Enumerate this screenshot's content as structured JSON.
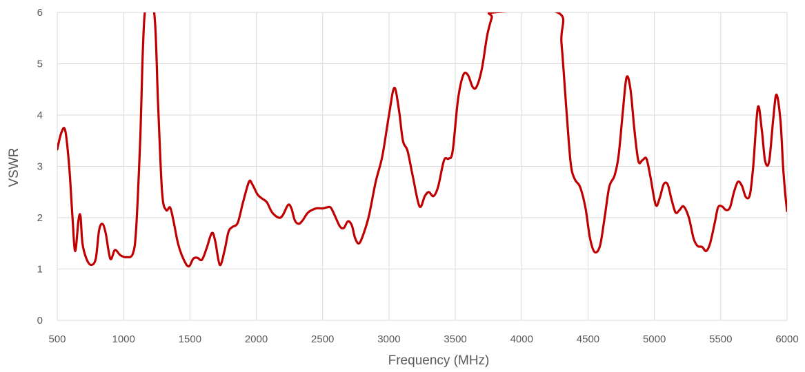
{
  "chart_data": {
    "type": "line",
    "title": "",
    "xlabel": "Frequency (MHz)",
    "ylabel": "VSWR",
    "xlim": [
      500,
      6000
    ],
    "ylim": [
      0,
      6
    ],
    "x_ticks": [
      500,
      1000,
      1500,
      2000,
      2500,
      3000,
      3500,
      4000,
      4500,
      5000,
      5500,
      6000
    ],
    "y_ticks": [
      0,
      1,
      2,
      3,
      4,
      5,
      6
    ],
    "grid": "on",
    "legend": "none",
    "series": [
      {
        "color": "#c00000",
        "points": [
          [
            500,
            3.33
          ],
          [
            530,
            3.65
          ],
          [
            560,
            3.7
          ],
          [
            590,
            3.0
          ],
          [
            615,
            2.0
          ],
          [
            635,
            1.35
          ],
          [
            660,
            1.95
          ],
          [
            675,
            2.03
          ],
          [
            690,
            1.5
          ],
          [
            720,
            1.2
          ],
          [
            755,
            1.08
          ],
          [
            790,
            1.2
          ],
          [
            815,
            1.75
          ],
          [
            840,
            1.88
          ],
          [
            865,
            1.7
          ],
          [
            900,
            1.2
          ],
          [
            935,
            1.37
          ],
          [
            975,
            1.27
          ],
          [
            1020,
            1.23
          ],
          [
            1070,
            1.3
          ],
          [
            1095,
            1.8
          ],
          [
            1125,
            3.5
          ],
          [
            1160,
            6.0
          ],
          [
            1230,
            6.0
          ],
          [
            1260,
            4.2
          ],
          [
            1290,
            2.5
          ],
          [
            1320,
            2.15
          ],
          [
            1350,
            2.2
          ],
          [
            1375,
            1.95
          ],
          [
            1410,
            1.5
          ],
          [
            1450,
            1.2
          ],
          [
            1490,
            1.05
          ],
          [
            1525,
            1.2
          ],
          [
            1555,
            1.22
          ],
          [
            1590,
            1.18
          ],
          [
            1625,
            1.4
          ],
          [
            1665,
            1.7
          ],
          [
            1690,
            1.55
          ],
          [
            1725,
            1.08
          ],
          [
            1760,
            1.35
          ],
          [
            1790,
            1.72
          ],
          [
            1820,
            1.82
          ],
          [
            1860,
            1.9
          ],
          [
            1900,
            2.3
          ],
          [
            1945,
            2.7
          ],
          [
            1970,
            2.65
          ],
          [
            2010,
            2.45
          ],
          [
            2045,
            2.37
          ],
          [
            2080,
            2.3
          ],
          [
            2120,
            2.1
          ],
          [
            2170,
            2.0
          ],
          [
            2200,
            2.05
          ],
          [
            2240,
            2.25
          ],
          [
            2265,
            2.18
          ],
          [
            2290,
            1.95
          ],
          [
            2320,
            1.88
          ],
          [
            2350,
            1.95
          ],
          [
            2390,
            2.1
          ],
          [
            2450,
            2.18
          ],
          [
            2500,
            2.18
          ],
          [
            2530,
            2.2
          ],
          [
            2560,
            2.2
          ],
          [
            2590,
            2.05
          ],
          [
            2630,
            1.83
          ],
          [
            2660,
            1.8
          ],
          [
            2690,
            1.93
          ],
          [
            2720,
            1.85
          ],
          [
            2745,
            1.6
          ],
          [
            2775,
            1.5
          ],
          [
            2810,
            1.7
          ],
          [
            2850,
            2.05
          ],
          [
            2900,
            2.7
          ],
          [
            2950,
            3.2
          ],
          [
            3000,
            4.0
          ],
          [
            3040,
            4.53
          ],
          [
            3075,
            4.1
          ],
          [
            3105,
            3.5
          ],
          [
            3140,
            3.3
          ],
          [
            3180,
            2.8
          ],
          [
            3230,
            2.22
          ],
          [
            3270,
            2.42
          ],
          [
            3300,
            2.5
          ],
          [
            3335,
            2.42
          ],
          [
            3370,
            2.6
          ],
          [
            3415,
            3.12
          ],
          [
            3450,
            3.15
          ],
          [
            3480,
            3.3
          ],
          [
            3520,
            4.3
          ],
          [
            3560,
            4.78
          ],
          [
            3595,
            4.78
          ],
          [
            3630,
            4.55
          ],
          [
            3660,
            4.55
          ],
          [
            3700,
            4.9
          ],
          [
            3740,
            5.55
          ],
          [
            3775,
            5.9
          ],
          [
            3790,
            6.0
          ],
          [
            4270,
            6.0
          ],
          [
            4300,
            5.4
          ],
          [
            4340,
            4.0
          ],
          [
            4370,
            3.05
          ],
          [
            4400,
            2.75
          ],
          [
            4440,
            2.6
          ],
          [
            4480,
            2.2
          ],
          [
            4515,
            1.6
          ],
          [
            4550,
            1.33
          ],
          [
            4590,
            1.45
          ],
          [
            4625,
            2.0
          ],
          [
            4660,
            2.6
          ],
          [
            4700,
            2.82
          ],
          [
            4730,
            3.2
          ],
          [
            4760,
            4.0
          ],
          [
            4790,
            4.73
          ],
          [
            4820,
            4.5
          ],
          [
            4850,
            3.7
          ],
          [
            4880,
            3.1
          ],
          [
            4910,
            3.12
          ],
          [
            4940,
            3.15
          ],
          [
            4970,
            2.8
          ],
          [
            5010,
            2.25
          ],
          [
            5040,
            2.38
          ],
          [
            5070,
            2.65
          ],
          [
            5100,
            2.65
          ],
          [
            5130,
            2.35
          ],
          [
            5160,
            2.1
          ],
          [
            5190,
            2.15
          ],
          [
            5220,
            2.22
          ],
          [
            5260,
            2.0
          ],
          [
            5295,
            1.6
          ],
          [
            5325,
            1.45
          ],
          [
            5360,
            1.43
          ],
          [
            5390,
            1.35
          ],
          [
            5420,
            1.5
          ],
          [
            5455,
            1.9
          ],
          [
            5480,
            2.2
          ],
          [
            5510,
            2.22
          ],
          [
            5540,
            2.15
          ],
          [
            5570,
            2.2
          ],
          [
            5600,
            2.5
          ],
          [
            5630,
            2.7
          ],
          [
            5660,
            2.62
          ],
          [
            5690,
            2.4
          ],
          [
            5720,
            2.45
          ],
          [
            5745,
            3.0
          ],
          [
            5780,
            4.15
          ],
          [
            5810,
            3.7
          ],
          [
            5835,
            3.1
          ],
          [
            5865,
            3.1
          ],
          [
            5895,
            3.9
          ],
          [
            5920,
            4.4
          ],
          [
            5950,
            3.9
          ],
          [
            5970,
            3.0
          ],
          [
            5985,
            2.5
          ],
          [
            6000,
            2.13
          ]
        ]
      }
    ]
  }
}
